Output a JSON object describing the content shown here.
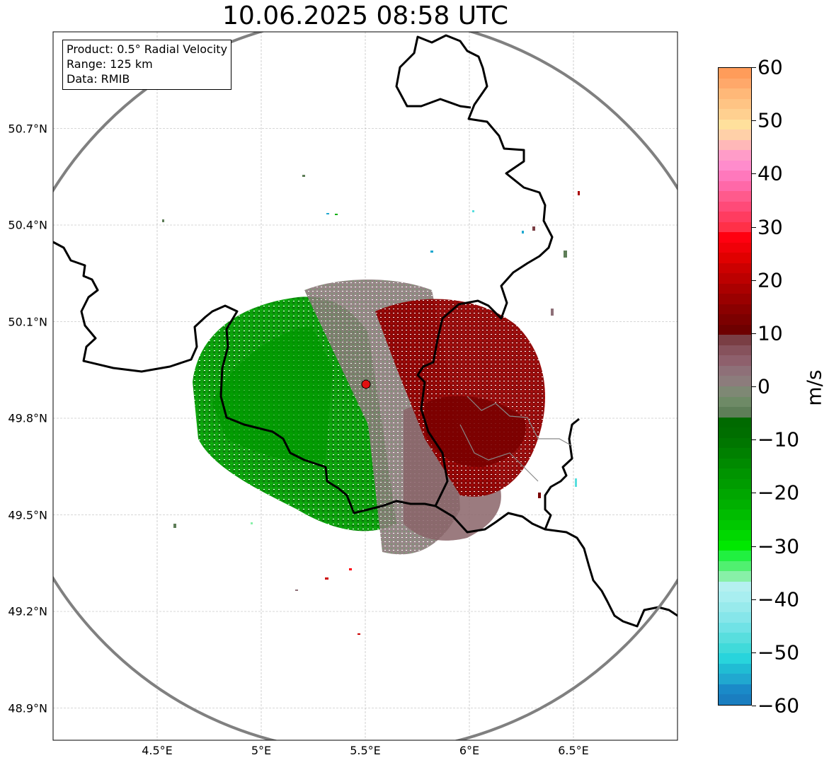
{
  "title": "10.06.2025 08:58 UTC",
  "info_box": {
    "product": "Product: 0.5° Radial Velocity",
    "range": "Range: 125 km",
    "data": "Data: RMIB"
  },
  "map": {
    "lon_range": [
      4.0,
      7.0
    ],
    "lat_range": [
      48.8,
      51.0
    ],
    "lat_ticks": [
      {
        "value": 50.7,
        "label": "50.7°N"
      },
      {
        "value": 50.4,
        "label": "50.4°N"
      },
      {
        "value": 50.1,
        "label": "50.1°N"
      },
      {
        "value": 49.8,
        "label": "49.8°N"
      },
      {
        "value": 49.5,
        "label": "49.5°N"
      },
      {
        "value": 49.2,
        "label": "49.2°N"
      },
      {
        "value": 48.9,
        "label": "48.9°N"
      }
    ],
    "lon_ticks": [
      {
        "value": 4.5,
        "label": "4.5°E"
      },
      {
        "value": 5.0,
        "label": "5°E"
      },
      {
        "value": 5.5,
        "label": "5.5°E"
      },
      {
        "value": 6.0,
        "label": "6°E"
      },
      {
        "value": 6.5,
        "label": "6.5°E"
      }
    ],
    "radar_site": {
      "lon": 5.505,
      "lat": 49.915
    },
    "range_ring_color": "#808080",
    "border_color": "#000000",
    "minor_border_color": "#888888",
    "grid": true
  },
  "colorbar": {
    "vmin": -60,
    "vmax": 60,
    "unit": "m/s",
    "ticks": [
      60,
      50,
      40,
      30,
      20,
      10,
      0,
      -10,
      -20,
      -30,
      -40,
      -50,
      -60
    ],
    "tick_labels": [
      "60",
      "50",
      "40",
      "30",
      "20",
      "10",
      "0",
      "−10",
      "−20",
      "−30",
      "−40",
      "−50",
      "−60"
    ],
    "colors_top_to_bottom": [
      "#ff9c5a",
      "#ffa86a",
      "#ffb878",
      "#ffc484",
      "#ffd090",
      "#ffe09c",
      "#ffd0a8",
      "#ffb8b8",
      "#ff9cc8",
      "#ff8ccc",
      "#ff78bc",
      "#ff68a8",
      "#ff5a8c",
      "#ff4a78",
      "#ff3c60",
      "#ff3048",
      "#ff0010",
      "#f00008",
      "#e00000",
      "#cc0000",
      "#bc0000",
      "#aa0000",
      "#9a0000",
      "#8a0000",
      "#7c0000",
      "#6e0000",
      "#7a3e44",
      "#86525c",
      "#8e606c",
      "#8e7078",
      "#8c7c7c",
      "#7e8874",
      "#6e8a66",
      "#5e7e58",
      "#006a00",
      "#006e00",
      "#007600",
      "#008000",
      "#008a00",
      "#009400",
      "#009c00",
      "#00a600",
      "#00b000",
      "#00bc00",
      "#00c800",
      "#00d800",
      "#00e800",
      "#20f040",
      "#50f070",
      "#88f0a8",
      "#b4f0f0",
      "#a8eef0",
      "#98eaec",
      "#86e6ea",
      "#70e2e6",
      "#58dede",
      "#40dada",
      "#28d4dc",
      "#20bcd4",
      "#20a8d0",
      "#1a8ac8",
      "#1a7ec0"
    ]
  }
}
